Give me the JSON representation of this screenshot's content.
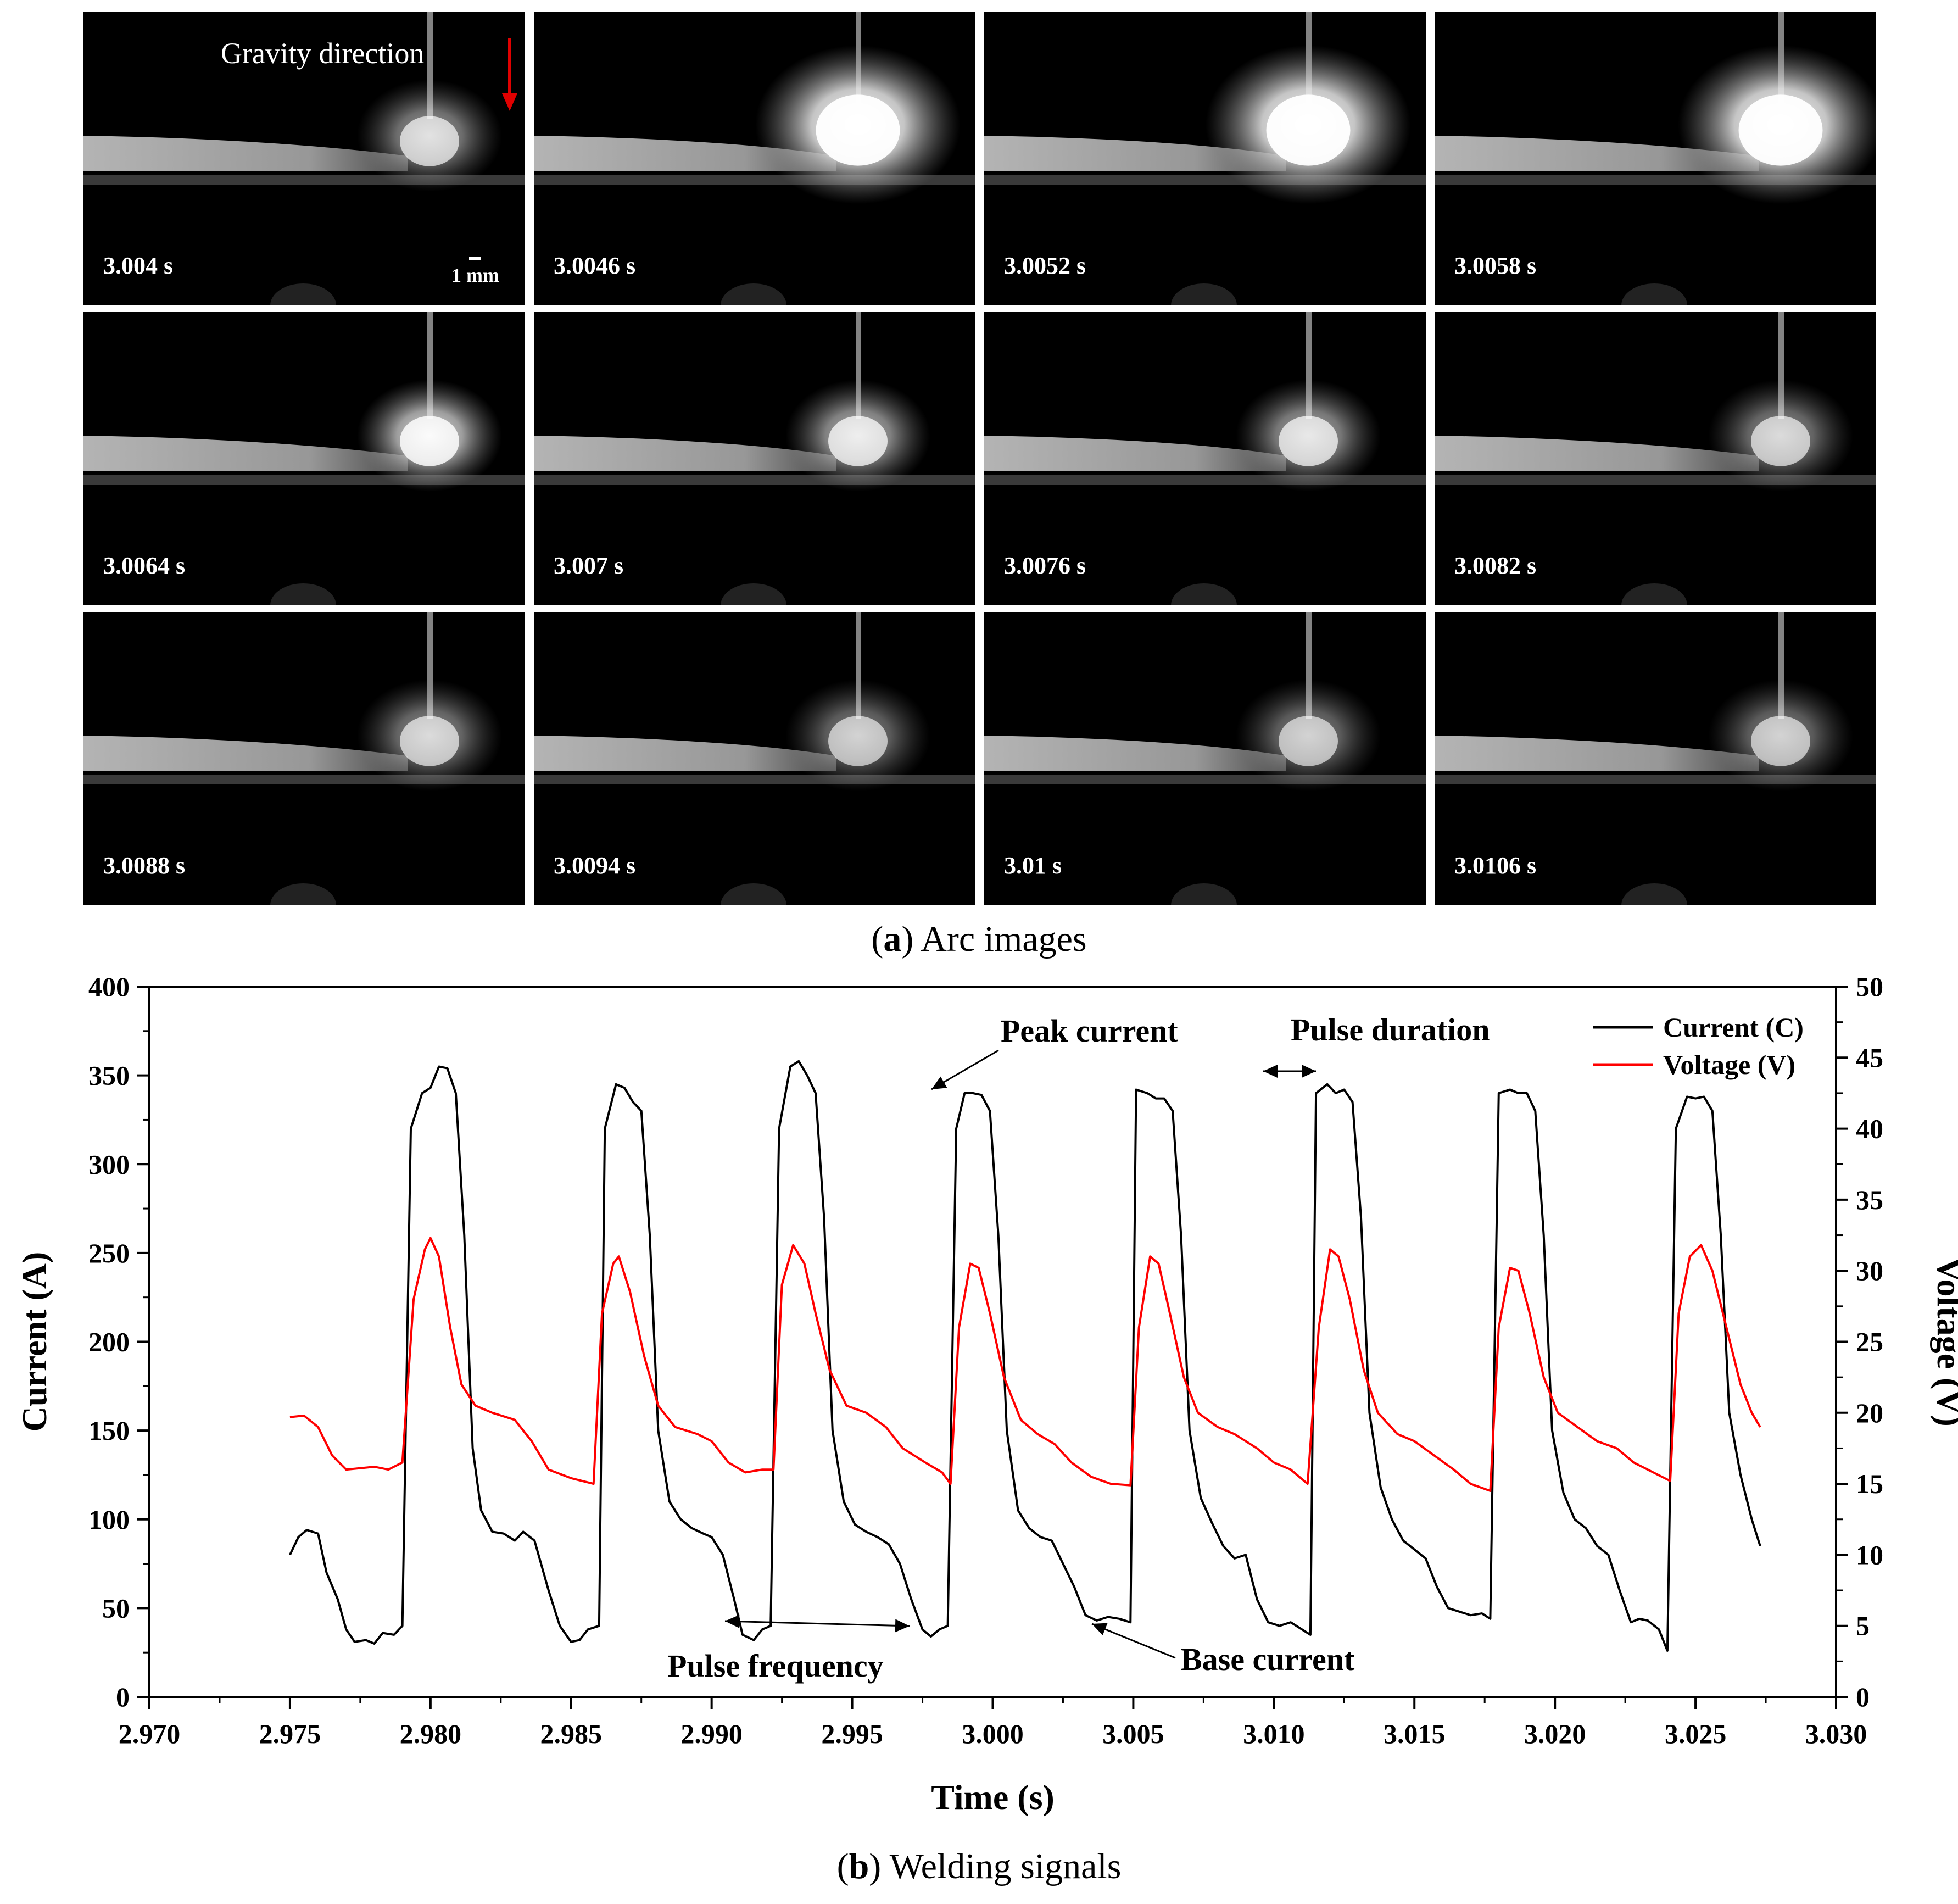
{
  "arc_images": {
    "gravity_label": "Gravity direction",
    "scale_label": "1 mm",
    "times": [
      "3.004 s",
      "3.0046 s",
      "3.0052 s",
      "3.0058 s",
      "3.0064 s",
      "3.007 s",
      "3.0076 s",
      "3.0082 s",
      "3.0088 s",
      "3.0094 s",
      "3.01 s",
      "3.0106 s"
    ],
    "brightness": [
      0.55,
      1.0,
      1.0,
      1.0,
      0.8,
      0.65,
      0.6,
      0.5,
      0.5,
      0.45,
      0.45,
      0.45
    ]
  },
  "caption_a": {
    "letter": "a",
    "text": " Arc images"
  },
  "caption_b": {
    "letter": "b",
    "text": " Welding signals"
  },
  "colors": {
    "current": "#000000",
    "voltage": "#ff0000",
    "gravity_arrow": "#e00000"
  },
  "chart_data": {
    "type": "line",
    "xlabel": "Time (s)",
    "ylabel": "Current (A)",
    "y2label": "Voltage (V)",
    "xlim": [
      2.97,
      3.03
    ],
    "ylim": [
      0,
      400
    ],
    "y2lim": [
      0,
      50
    ],
    "x_ticks": [
      "2.970",
      "2.975",
      "2.980",
      "2.985",
      "2.990",
      "2.995",
      "3.000",
      "3.005",
      "3.010",
      "3.015",
      "3.020",
      "3.025",
      "3.030"
    ],
    "y_ticks": [
      "0",
      "50",
      "100",
      "150",
      "200",
      "250",
      "300",
      "350",
      "400"
    ],
    "y2_ticks": [
      "0",
      "5",
      "10",
      "15",
      "20",
      "25",
      "30",
      "35",
      "40",
      "45",
      "50"
    ],
    "legend": {
      "position": "top-right",
      "entries": [
        "Current (C)",
        "Voltage (V)"
      ]
    },
    "annotations": [
      "Peak current",
      "Pulse duration",
      "Pulse frequency",
      "Base current"
    ],
    "series": [
      {
        "name": "Current (C)",
        "axis": "left",
        "points": [
          [
            2.975,
            80
          ],
          [
            2.9753,
            90
          ],
          [
            2.9756,
            94
          ],
          [
            2.976,
            92
          ],
          [
            2.9763,
            70
          ],
          [
            2.9767,
            55
          ],
          [
            2.977,
            38
          ],
          [
            2.9773,
            31
          ],
          [
            2.9777,
            32
          ],
          [
            2.978,
            30
          ],
          [
            2.9783,
            36
          ],
          [
            2.9787,
            35
          ],
          [
            2.979,
            40
          ],
          [
            2.9793,
            320
          ],
          [
            2.9797,
            340
          ],
          [
            2.98,
            343
          ],
          [
            2.9803,
            355
          ],
          [
            2.9806,
            354
          ],
          [
            2.9809,
            340
          ],
          [
            2.9812,
            260
          ],
          [
            2.9815,
            140
          ],
          [
            2.9818,
            105
          ],
          [
            2.9822,
            93
          ],
          [
            2.9826,
            92
          ],
          [
            2.983,
            88
          ],
          [
            2.9833,
            93
          ],
          [
            2.9837,
            88
          ],
          [
            2.9842,
            60
          ],
          [
            2.9846,
            40
          ],
          [
            2.985,
            31
          ],
          [
            2.9853,
            32
          ],
          [
            2.9856,
            38
          ],
          [
            2.986,
            40
          ],
          [
            2.9862,
            320
          ],
          [
            2.9866,
            345
          ],
          [
            2.9869,
            343
          ],
          [
            2.9872,
            335
          ],
          [
            2.9875,
            330
          ],
          [
            2.9878,
            260
          ],
          [
            2.9881,
            150
          ],
          [
            2.9885,
            110
          ],
          [
            2.9889,
            100
          ],
          [
            2.9893,
            95
          ],
          [
            2.9897,
            92
          ],
          [
            2.99,
            90
          ],
          [
            2.9904,
            80
          ],
          [
            2.9908,
            55
          ],
          [
            2.9911,
            35
          ],
          [
            2.9915,
            32
          ],
          [
            2.9918,
            38
          ],
          [
            2.9921,
            40
          ],
          [
            2.9924,
            320
          ],
          [
            2.9928,
            355
          ],
          [
            2.9931,
            358
          ],
          [
            2.9934,
            350
          ],
          [
            2.9937,
            340
          ],
          [
            2.994,
            270
          ],
          [
            2.9943,
            150
          ],
          [
            2.9947,
            110
          ],
          [
            2.9951,
            97
          ],
          [
            2.9955,
            93
          ],
          [
            2.9959,
            90
          ],
          [
            2.9963,
            86
          ],
          [
            2.9967,
            75
          ],
          [
            2.9971,
            55
          ],
          [
            2.9975,
            38
          ],
          [
            2.9978,
            34
          ],
          [
            2.9981,
            38
          ],
          [
            2.9984,
            40
          ],
          [
            2.9987,
            320
          ],
          [
            2.999,
            340
          ],
          [
            2.9993,
            340
          ],
          [
            2.9996,
            339
          ],
          [
            2.9999,
            330
          ],
          [
            3.0002,
            260
          ],
          [
            3.0005,
            150
          ],
          [
            3.0009,
            105
          ],
          [
            3.0013,
            95
          ],
          [
            3.0017,
            90
          ],
          [
            3.0021,
            88
          ],
          [
            3.0025,
            75
          ],
          [
            3.0029,
            62
          ],
          [
            3.0033,
            46
          ],
          [
            3.0037,
            43
          ],
          [
            3.0041,
            45
          ],
          [
            3.0045,
            44
          ],
          [
            3.0049,
            42
          ],
          [
            3.0051,
            342
          ],
          [
            3.0055,
            340
          ],
          [
            3.0058,
            337
          ],
          [
            3.0061,
            337
          ],
          [
            3.0064,
            330
          ],
          [
            3.0067,
            260
          ],
          [
            3.007,
            150
          ],
          [
            3.0074,
            112
          ],
          [
            3.0078,
            98
          ],
          [
            3.0082,
            85
          ],
          [
            3.0086,
            78
          ],
          [
            3.009,
            80
          ],
          [
            3.0094,
            55
          ],
          [
            3.0098,
            42
          ],
          [
            3.0102,
            40
          ],
          [
            3.0106,
            42
          ],
          [
            3.011,
            38
          ],
          [
            3.0113,
            35
          ],
          [
            3.0115,
            340
          ],
          [
            3.0119,
            345
          ],
          [
            3.0122,
            340
          ],
          [
            3.0125,
            342
          ],
          [
            3.0128,
            335
          ],
          [
            3.0131,
            270
          ],
          [
            3.0134,
            160
          ],
          [
            3.0138,
            118
          ],
          [
            3.0142,
            100
          ],
          [
            3.0146,
            88
          ],
          [
            3.015,
            83
          ],
          [
            3.0154,
            78
          ],
          [
            3.0158,
            62
          ],
          [
            3.0162,
            50
          ],
          [
            3.0166,
            48
          ],
          [
            3.017,
            46
          ],
          [
            3.0174,
            47
          ],
          [
            3.0177,
            44
          ],
          [
            3.018,
            340
          ],
          [
            3.0184,
            342
          ],
          [
            3.0187,
            340
          ],
          [
            3.019,
            340
          ],
          [
            3.0193,
            330
          ],
          [
            3.0196,
            260
          ],
          [
            3.0199,
            150
          ],
          [
            3.0203,
            115
          ],
          [
            3.0207,
            100
          ],
          [
            3.0211,
            95
          ],
          [
            3.0215,
            85
          ],
          [
            3.0219,
            80
          ],
          [
            3.0223,
            60
          ],
          [
            3.0227,
            42
          ],
          [
            3.023,
            44
          ],
          [
            3.0233,
            43
          ],
          [
            3.0237,
            38
          ],
          [
            3.024,
            26
          ],
          [
            3.0243,
            320
          ],
          [
            3.0247,
            338
          ],
          [
            3.025,
            337
          ],
          [
            3.0253,
            338
          ],
          [
            3.0256,
            330
          ],
          [
            3.0259,
            260
          ],
          [
            3.0262,
            160
          ],
          [
            3.0266,
            125
          ],
          [
            3.027,
            100
          ],
          [
            3.0273,
            85
          ]
        ]
      },
      {
        "name": "Voltage (V)",
        "axis": "right",
        "points": [
          [
            2.975,
            19.7
          ],
          [
            2.9755,
            19.8
          ],
          [
            2.976,
            19.0
          ],
          [
            2.9765,
            17.0
          ],
          [
            2.977,
            16.0
          ],
          [
            2.978,
            16.2
          ],
          [
            2.9785,
            16.0
          ],
          [
            2.979,
            16.5
          ],
          [
            2.9794,
            28.0
          ],
          [
            2.9798,
            31.5
          ],
          [
            2.98,
            32.3
          ],
          [
            2.9803,
            31.0
          ],
          [
            2.9807,
            26.0
          ],
          [
            2.9811,
            22.0
          ],
          [
            2.9816,
            20.5
          ],
          [
            2.9822,
            20.0
          ],
          [
            2.983,
            19.5
          ],
          [
            2.9836,
            18.0
          ],
          [
            2.9842,
            16.0
          ],
          [
            2.985,
            15.4
          ],
          [
            2.9858,
            15.0
          ],
          [
            2.9861,
            27.0
          ],
          [
            2.9865,
            30.5
          ],
          [
            2.9867,
            31.0
          ],
          [
            2.9871,
            28.5
          ],
          [
            2.9876,
            24.0
          ],
          [
            2.9881,
            20.5
          ],
          [
            2.9887,
            19.0
          ],
          [
            2.9895,
            18.5
          ],
          [
            2.99,
            18.0
          ],
          [
            2.9906,
            16.5
          ],
          [
            2.9912,
            15.8
          ],
          [
            2.9918,
            16.0
          ],
          [
            2.9922,
            16.0
          ],
          [
            2.9925,
            29.0
          ],
          [
            2.9929,
            31.8
          ],
          [
            2.9933,
            30.5
          ],
          [
            2.9937,
            27.0
          ],
          [
            2.9942,
            23.0
          ],
          [
            2.9948,
            20.5
          ],
          [
            2.9955,
            20.0
          ],
          [
            2.9962,
            19.0
          ],
          [
            2.9968,
            17.5
          ],
          [
            2.9976,
            16.5
          ],
          [
            2.9982,
            15.8
          ],
          [
            2.9985,
            15.0
          ],
          [
            2.9988,
            26.0
          ],
          [
            2.9992,
            30.5
          ],
          [
            2.9995,
            30.2
          ],
          [
            2.9999,
            27.0
          ],
          [
            3.0004,
            22.5
          ],
          [
            3.001,
            19.5
          ],
          [
            3.0016,
            18.5
          ],
          [
            3.0022,
            17.8
          ],
          [
            3.0028,
            16.5
          ],
          [
            3.0035,
            15.5
          ],
          [
            3.0042,
            15.0
          ],
          [
            3.0049,
            14.9
          ],
          [
            3.0052,
            26.0
          ],
          [
            3.0056,
            31.0
          ],
          [
            3.0059,
            30.5
          ],
          [
            3.0063,
            27.0
          ],
          [
            3.0068,
            22.5
          ],
          [
            3.0073,
            20.0
          ],
          [
            3.008,
            19.0
          ],
          [
            3.0086,
            18.5
          ],
          [
            3.0094,
            17.5
          ],
          [
            3.01,
            16.5
          ],
          [
            3.0106,
            16.0
          ],
          [
            3.0112,
            15.0
          ],
          [
            3.0116,
            26.0
          ],
          [
            3.012,
            31.5
          ],
          [
            3.0123,
            31.0
          ],
          [
            3.0127,
            28.0
          ],
          [
            3.0132,
            23.0
          ],
          [
            3.0137,
            20.0
          ],
          [
            3.0144,
            18.5
          ],
          [
            3.015,
            18.0
          ],
          [
            3.0157,
            17.0
          ],
          [
            3.0164,
            16.0
          ],
          [
            3.017,
            15.0
          ],
          [
            3.0177,
            14.5
          ],
          [
            3.018,
            26.0
          ],
          [
            3.0184,
            30.2
          ],
          [
            3.0187,
            30.0
          ],
          [
            3.0191,
            27.0
          ],
          [
            3.0196,
            22.5
          ],
          [
            3.0201,
            20.0
          ],
          [
            3.0208,
            19.0
          ],
          [
            3.0215,
            18.0
          ],
          [
            3.0222,
            17.5
          ],
          [
            3.0228,
            16.5
          ],
          [
            3.0235,
            15.8
          ],
          [
            3.0241,
            15.2
          ],
          [
            3.0244,
            27.0
          ],
          [
            3.0248,
            31.0
          ],
          [
            3.0252,
            31.8
          ],
          [
            3.0256,
            30.0
          ],
          [
            3.0261,
            26.0
          ],
          [
            3.0266,
            22.0
          ],
          [
            3.027,
            20.0
          ],
          [
            3.0273,
            19.0
          ]
        ]
      }
    ]
  }
}
